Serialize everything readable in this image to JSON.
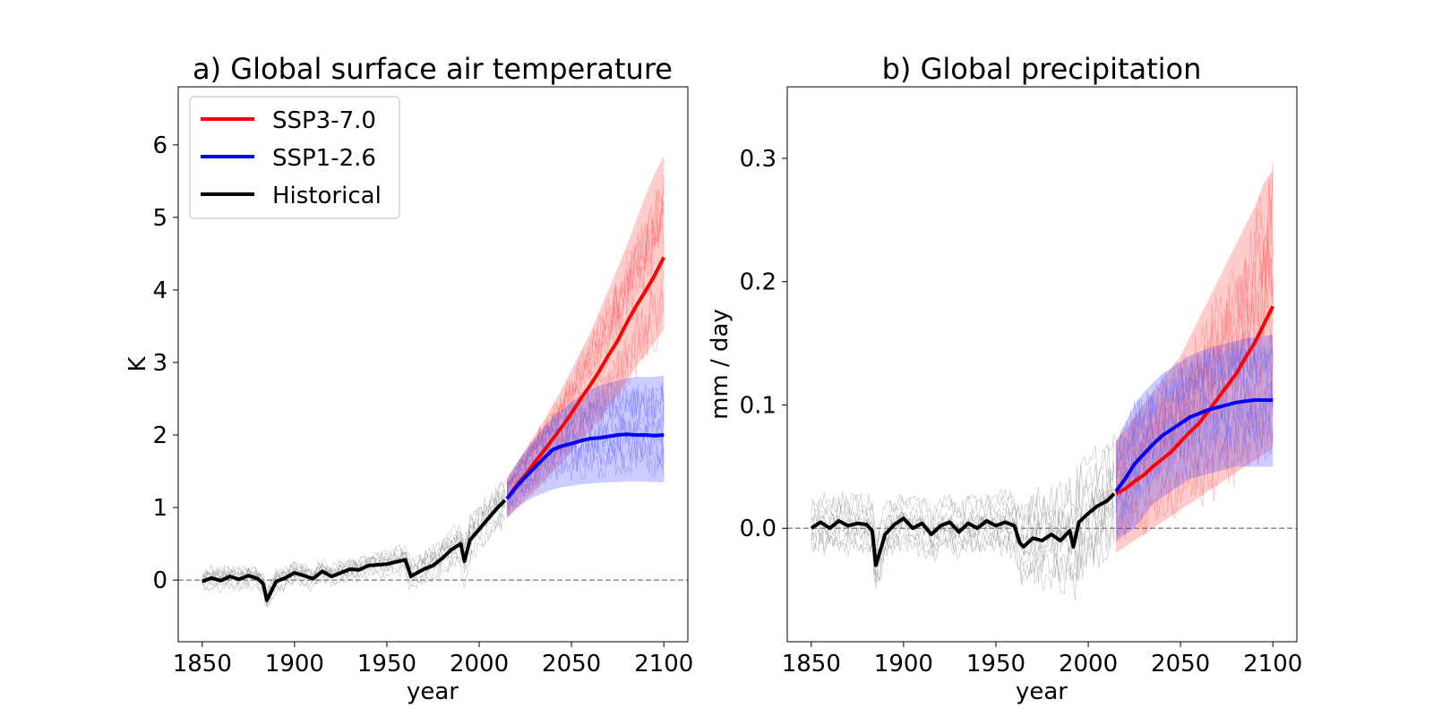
{
  "chart_data": [
    {
      "type": "line",
      "title": "a) Global surface air temperature",
      "xlabel": "year",
      "ylabel": "K",
      "xlim": [
        1837,
        2113
      ],
      "ylim": [
        -0.85,
        6.8
      ],
      "xticks": [
        1850,
        1900,
        1950,
        2000,
        2050,
        2100
      ],
      "yticks": [
        0,
        1,
        2,
        3,
        4,
        5,
        6
      ],
      "grid": false,
      "legend": "top-left",
      "zero_line": true,
      "series": [
        {
          "name": "Historical",
          "color": "#000000",
          "x": [
            1850,
            1855,
            1860,
            1865,
            1870,
            1875,
            1880,
            1883,
            1885,
            1890,
            1895,
            1900,
            1905,
            1910,
            1915,
            1920,
            1925,
            1930,
            1935,
            1940,
            1945,
            1950,
            1955,
            1960,
            1963,
            1965,
            1970,
            1975,
            1980,
            1985,
            1990,
            1992,
            1995,
            2000,
            2005,
            2010,
            2014
          ],
          "values": [
            -0.02,
            0.03,
            -0.01,
            0.05,
            0.01,
            0.06,
            0.02,
            -0.05,
            -0.28,
            -0.02,
            0.03,
            0.1,
            0.06,
            0.02,
            0.12,
            0.05,
            0.1,
            0.15,
            0.14,
            0.2,
            0.21,
            0.22,
            0.25,
            0.28,
            0.05,
            0.08,
            0.15,
            0.2,
            0.3,
            0.42,
            0.5,
            0.26,
            0.55,
            0.7,
            0.85,
            1.0,
            1.1
          ],
          "spread": [
            0.2,
            0.2,
            0.2,
            0.2,
            0.2,
            0.2,
            0.2,
            0.2,
            0.22,
            0.2,
            0.2,
            0.2,
            0.2,
            0.2,
            0.2,
            0.2,
            0.2,
            0.2,
            0.2,
            0.2,
            0.2,
            0.22,
            0.24,
            0.26,
            0.3,
            0.3,
            0.3,
            0.32,
            0.34,
            0.36,
            0.38,
            0.4,
            0.4,
            0.4,
            0.4,
            0.4,
            0.4
          ]
        },
        {
          "name": "SSP3-7.0",
          "color": "#ff0000",
          "x": [
            2015,
            2020,
            2025,
            2030,
            2035,
            2040,
            2045,
            2050,
            2055,
            2060,
            2065,
            2070,
            2075,
            2080,
            2085,
            2090,
            2095,
            2100
          ],
          "values": [
            1.12,
            1.3,
            1.45,
            1.62,
            1.78,
            1.95,
            2.12,
            2.3,
            2.5,
            2.68,
            2.88,
            3.1,
            3.3,
            3.55,
            3.78,
            3.98,
            4.2,
            4.45
          ],
          "lower": [
            0.85,
            0.98,
            1.1,
            1.22,
            1.35,
            1.5,
            1.62,
            1.78,
            1.92,
            2.05,
            2.2,
            2.38,
            2.55,
            2.75,
            2.95,
            3.1,
            3.28,
            3.45
          ],
          "upper": [
            1.4,
            1.6,
            1.8,
            2.0,
            2.2,
            2.42,
            2.65,
            2.9,
            3.15,
            3.4,
            3.7,
            4.0,
            4.3,
            4.62,
            4.95,
            5.3,
            5.6,
            5.85
          ]
        },
        {
          "name": "SSP1-2.6",
          "color": "#0000ff",
          "x": [
            2015,
            2020,
            2025,
            2030,
            2035,
            2040,
            2045,
            2050,
            2055,
            2060,
            2065,
            2070,
            2075,
            2080,
            2085,
            2090,
            2095,
            2100
          ],
          "values": [
            1.12,
            1.28,
            1.42,
            1.55,
            1.68,
            1.8,
            1.85,
            1.88,
            1.92,
            1.95,
            1.96,
            1.98,
            2.0,
            2.01,
            2.0,
            2.0,
            1.99,
            2.0
          ],
          "lower": [
            0.85,
            0.98,
            1.08,
            1.15,
            1.2,
            1.25,
            1.28,
            1.3,
            1.32,
            1.33,
            1.34,
            1.35,
            1.35,
            1.36,
            1.36,
            1.36,
            1.35,
            1.35
          ],
          "upper": [
            1.4,
            1.6,
            1.78,
            1.95,
            2.1,
            2.25,
            2.35,
            2.45,
            2.55,
            2.62,
            2.68,
            2.72,
            2.75,
            2.78,
            2.8,
            2.8,
            2.8,
            2.82
          ]
        }
      ]
    },
    {
      "type": "line",
      "title": "b) Global precipitation",
      "xlabel": "year",
      "ylabel": "mm / day",
      "xlim": [
        1837,
        2113
      ],
      "ylim": [
        -0.092,
        0.358
      ],
      "xticks": [
        1850,
        1900,
        1950,
        2000,
        2050,
        2100
      ],
      "yticks": [
        0.0,
        0.1,
        0.2,
        0.3
      ],
      "ytick_labels": [
        "0.0",
        "0.1",
        "0.2",
        "0.3"
      ],
      "grid": false,
      "legend": "none",
      "zero_line": true,
      "series": [
        {
          "name": "Historical",
          "color": "#000000",
          "x": [
            1850,
            1855,
            1860,
            1865,
            1870,
            1875,
            1880,
            1883,
            1885,
            1890,
            1895,
            1900,
            1905,
            1910,
            1915,
            1920,
            1925,
            1930,
            1935,
            1940,
            1945,
            1950,
            1955,
            1960,
            1963,
            1965,
            1970,
            1975,
            1980,
            1985,
            1990,
            1992,
            1995,
            2000,
            2005,
            2010,
            2014
          ],
          "values": [
            0.0,
            0.005,
            0.0,
            0.006,
            0.002,
            0.004,
            0.003,
            -0.002,
            -0.03,
            -0.005,
            0.003,
            0.008,
            0.0,
            0.004,
            -0.005,
            0.002,
            0.005,
            -0.003,
            0.004,
            0.0,
            0.006,
            0.002,
            0.005,
            0.002,
            -0.012,
            -0.015,
            -0.008,
            -0.01,
            -0.005,
            -0.01,
            -0.002,
            -0.015,
            0.005,
            0.012,
            0.018,
            0.022,
            0.028
          ],
          "spread": [
            0.025,
            0.025,
            0.025,
            0.025,
            0.025,
            0.025,
            0.025,
            0.025,
            0.03,
            0.025,
            0.025,
            0.025,
            0.025,
            0.025,
            0.025,
            0.025,
            0.025,
            0.025,
            0.025,
            0.025,
            0.025,
            0.025,
            0.028,
            0.03,
            0.04,
            0.04,
            0.04,
            0.042,
            0.044,
            0.046,
            0.048,
            0.05,
            0.05,
            0.05,
            0.05,
            0.05,
            0.05
          ]
        },
        {
          "name": "SSP3-7.0",
          "color": "#ff0000",
          "x": [
            2015,
            2020,
            2025,
            2030,
            2035,
            2040,
            2045,
            2050,
            2055,
            2060,
            2065,
            2070,
            2075,
            2080,
            2085,
            2090,
            2095,
            2100
          ],
          "values": [
            0.028,
            0.032,
            0.038,
            0.043,
            0.05,
            0.056,
            0.062,
            0.07,
            0.078,
            0.085,
            0.095,
            0.105,
            0.115,
            0.125,
            0.138,
            0.15,
            0.165,
            0.18
          ],
          "lower": [
            -0.02,
            -0.015,
            -0.01,
            -0.005,
            0.0,
            0.005,
            0.01,
            0.015,
            0.02,
            0.025,
            0.03,
            0.035,
            0.04,
            0.045,
            0.05,
            0.055,
            0.06,
            0.065
          ],
          "upper": [
            0.07,
            0.08,
            0.09,
            0.1,
            0.11,
            0.12,
            0.13,
            0.14,
            0.155,
            0.17,
            0.185,
            0.2,
            0.215,
            0.23,
            0.245,
            0.26,
            0.28,
            0.29
          ]
        },
        {
          "name": "SSP1-2.6",
          "color": "#0000ff",
          "x": [
            2015,
            2020,
            2025,
            2030,
            2035,
            2040,
            2045,
            2050,
            2055,
            2060,
            2065,
            2070,
            2075,
            2080,
            2085,
            2090,
            2095,
            2100
          ],
          "values": [
            0.03,
            0.04,
            0.052,
            0.06,
            0.068,
            0.075,
            0.08,
            0.085,
            0.09,
            0.093,
            0.096,
            0.098,
            0.1,
            0.102,
            0.103,
            0.104,
            0.104,
            0.104
          ],
          "lower": [
            -0.01,
            -0.005,
            0.0,
            0.01,
            0.02,
            0.025,
            0.03,
            0.035,
            0.04,
            0.042,
            0.044,
            0.046,
            0.048,
            0.05,
            0.05,
            0.05,
            0.05,
            0.05
          ],
          "upper": [
            0.07,
            0.085,
            0.1,
            0.11,
            0.118,
            0.125,
            0.13,
            0.135,
            0.14,
            0.143,
            0.146,
            0.148,
            0.15,
            0.152,
            0.154,
            0.155,
            0.156,
            0.157
          ]
        }
      ]
    }
  ]
}
